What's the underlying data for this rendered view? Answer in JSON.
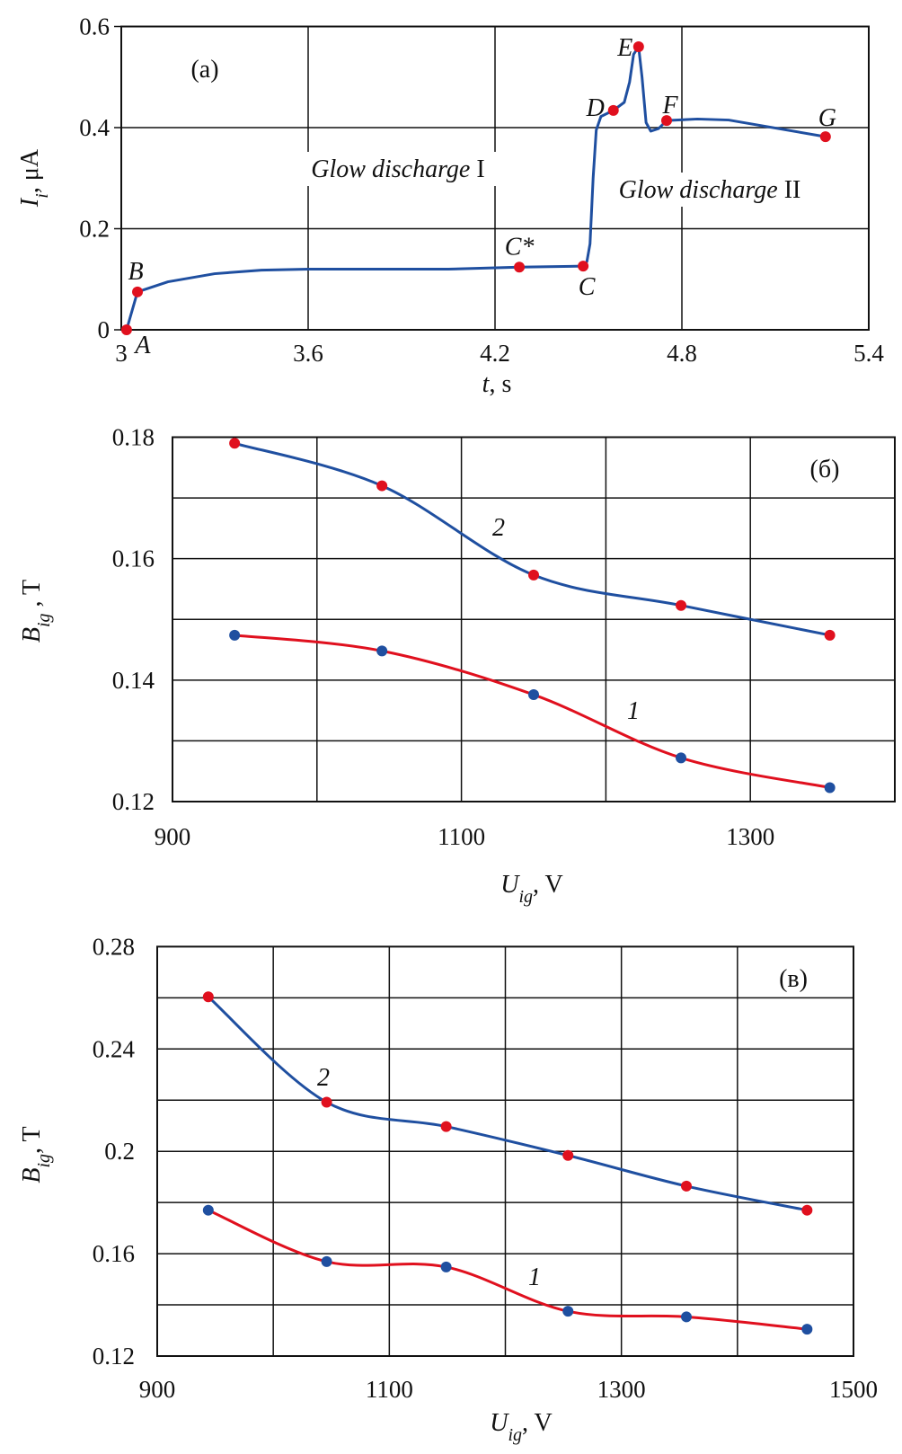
{
  "chart_data": [
    {
      "type": "line",
      "panel_label": "(a)",
      "xlabel": {
        "main": "t",
        "unit": ", s"
      },
      "ylabel": {
        "main": "I",
        "sub": "i",
        "unit": ", μA"
      },
      "xlim": [
        3,
        5.4
      ],
      "ylim": [
        0,
        0.6
      ],
      "x_ticks": [
        3,
        3.6,
        4.2,
        4.8,
        5.4
      ],
      "x_tick_labels": [
        "3",
        "3.6",
        "4.2",
        "4.8",
        "5.4"
      ],
      "y_ticks": [
        0,
        0.2,
        0.4,
        0.6
      ],
      "y_tick_labels": [
        "0",
        "0.2",
        "0.4",
        "0.6"
      ],
      "grid": true,
      "line_color": "#1f4fa0",
      "marker_color": "#e0101e",
      "curve": [
        [
          3.017,
          0
        ],
        [
          3.052,
          0.075
        ],
        [
          3.15,
          0.095
        ],
        [
          3.3,
          0.111
        ],
        [
          3.45,
          0.118
        ],
        [
          3.6,
          0.12
        ],
        [
          3.9,
          0.12
        ],
        [
          4.05,
          0.12
        ],
        [
          4.278,
          0.124
        ],
        [
          4.483,
          0.126
        ],
        [
          4.495,
          0.135
        ],
        [
          4.505,
          0.17
        ],
        [
          4.515,
          0.3
        ],
        [
          4.525,
          0.395
        ],
        [
          4.54,
          0.422
        ],
        [
          4.58,
          0.434
        ],
        [
          4.615,
          0.45
        ],
        [
          4.632,
          0.49
        ],
        [
          4.645,
          0.545
        ],
        [
          4.661,
          0.56
        ],
        [
          4.672,
          0.5
        ],
        [
          4.685,
          0.41
        ],
        [
          4.7,
          0.393
        ],
        [
          4.725,
          0.398
        ],
        [
          4.751,
          0.414
        ],
        [
          4.85,
          0.417
        ],
        [
          4.95,
          0.415
        ],
        [
          5.261,
          0.382
        ]
      ],
      "points": [
        {
          "label": "A",
          "t": 3.017,
          "I": 0
        },
        {
          "label": "B",
          "t": 3.052,
          "I": 0.075
        },
        {
          "label": "C*",
          "t": 4.278,
          "I": 0.124
        },
        {
          "label": "C",
          "t": 4.483,
          "I": 0.126
        },
        {
          "label": "D",
          "t": 4.58,
          "I": 0.434
        },
        {
          "label": "E",
          "t": 4.661,
          "I": 0.56
        },
        {
          "label": "F",
          "t": 4.751,
          "I": 0.414
        },
        {
          "label": "G",
          "t": 5.261,
          "I": 0.382
        }
      ],
      "annotations": [
        {
          "italic": "Glow discharge",
          "roman": " I"
        },
        {
          "italic": "Glow discharge",
          "roman": " II"
        }
      ]
    },
    {
      "type": "line",
      "panel_label": "(б)",
      "xlabel": {
        "main": "U",
        "sub": "ig",
        "unit": ", V"
      },
      "ylabel": {
        "main": "B",
        "sub": "ig",
        "unit": " , T"
      },
      "xlim": [
        900,
        1400
      ],
      "ylim": [
        0.12,
        0.18
      ],
      "x_ticks": [
        900,
        1100,
        1300
      ],
      "x_tick_labels": [
        "900",
        "1100",
        "1300"
      ],
      "y_ticks": [
        0.12,
        0.14,
        0.16,
        0.18
      ],
      "y_tick_labels": [
        "0.12",
        "0.14",
        "0.16",
        "0.18"
      ],
      "grid": true,
      "series": [
        {
          "name": "1",
          "line_color": "#e0101e",
          "marker_color": "#1f4fa0",
          "x": [
            943,
            1045,
            1150,
            1252,
            1355
          ],
          "y": [
            0.1474,
            0.1448,
            0.1376,
            0.1272,
            0.1223
          ]
        },
        {
          "name": "2",
          "line_color": "#1f4fa0",
          "marker_color": "#e0101e",
          "x": [
            943,
            1045,
            1150,
            1252,
            1355
          ],
          "y": [
            0.179,
            0.172,
            0.1573,
            0.1523,
            0.1474
          ]
        }
      ]
    },
    {
      "type": "line",
      "panel_label": "(в)",
      "xlabel": {
        "main": "U",
        "sub": "ig",
        "unit": ", V"
      },
      "ylabel": {
        "main": "B",
        "sub": "ig",
        "unit": ", T"
      },
      "xlim": [
        900,
        1500
      ],
      "ylim": [
        0.12,
        0.28
      ],
      "x_ticks": [
        900,
        1100,
        1300,
        1500
      ],
      "x_tick_labels": [
        "900",
        "1100",
        "1300",
        "1500"
      ],
      "y_ticks": [
        0.12,
        0.16,
        0.2,
        0.24,
        0.28
      ],
      "y_tick_labels": [
        "0.12",
        "0.16",
        "0.2",
        "0.24",
        "0.28"
      ],
      "grid": true,
      "series": [
        {
          "name": "1",
          "line_color": "#e0101e",
          "marker_color": "#1f4fa0",
          "x": [
            944,
            1046,
            1149,
            1254,
            1356,
            1460
          ],
          "y": [
            0.177,
            0.1569,
            0.1548,
            0.1375,
            0.1353,
            0.1305
          ]
        },
        {
          "name": "2",
          "line_color": "#1f4fa0",
          "marker_color": "#e0101e",
          "x": [
            944,
            1046,
            1149,
            1254,
            1356,
            1460
          ],
          "y": [
            0.2604,
            0.2192,
            0.2097,
            0.1984,
            0.1864,
            0.177
          ]
        }
      ]
    }
  ]
}
